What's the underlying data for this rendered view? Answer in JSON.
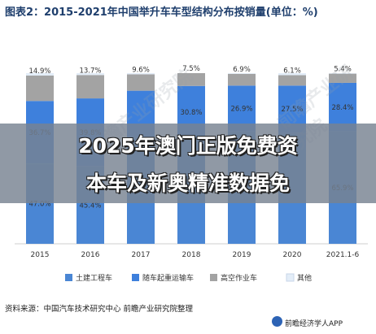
{
  "chart_data": {
    "type": "bar",
    "stacked": true,
    "percent": true,
    "title": "图表2：2015-2021年中国举升车车型结构分布按销量(单位：%)",
    "categories": [
      "2015",
      "2016",
      "2017",
      "2018",
      "2019",
      "2020",
      "2021.1-6"
    ],
    "ylim": [
      0,
      100
    ],
    "legend_position": "bottom",
    "series": [
      {
        "name": "土建工程车",
        "color": "#4a86d4",
        "values": [
          47.0,
          45.4,
          62.4,
          61.7,
          65.8,
          65.2,
          65.9
        ]
      },
      {
        "name": "随车起重运输车",
        "color": "#3e80dc",
        "values": [
          36.7,
          39.8,
          27.3,
          30.8,
          26.9,
          27.5,
          28.4
        ]
      },
      {
        "name": "高空作业车",
        "color": "#a3a3a3",
        "values": [
          14.9,
          13.7,
          9.6,
          7.5,
          6.9,
          6.1,
          5.4
        ]
      },
      {
        "name": "其他",
        "color": "#e3edf8",
        "values": [
          1.4,
          1.1,
          0.7,
          0.0,
          0.4,
          1.2,
          0.3
        ]
      }
    ],
    "data_labels": {
      "土建工程车": [
        "47.0%",
        "45.4%",
        "",
        "",
        "",
        "",
        "65.9%"
      ],
      "随车起重运输车": [
        "36.7%",
        "39.8%",
        "",
        "30.8%",
        "26.9%",
        "27.5%",
        "28.4%"
      ],
      "高空作业车": [
        "14.9%",
        "13.7%",
        "9.6%",
        "7.5%",
        "6.9%",
        "6.1%",
        "5.4%"
      ]
    }
  },
  "source": "资料来源：中国汽车技术研究中心 前瞻产业研究院整理",
  "brand": "前瞻经济学人APP",
  "banner": {
    "line1": "2025年澳门正版免费资",
    "line2": "本车及新奥精准数据免"
  },
  "watermark": "前瞻产业研究院"
}
